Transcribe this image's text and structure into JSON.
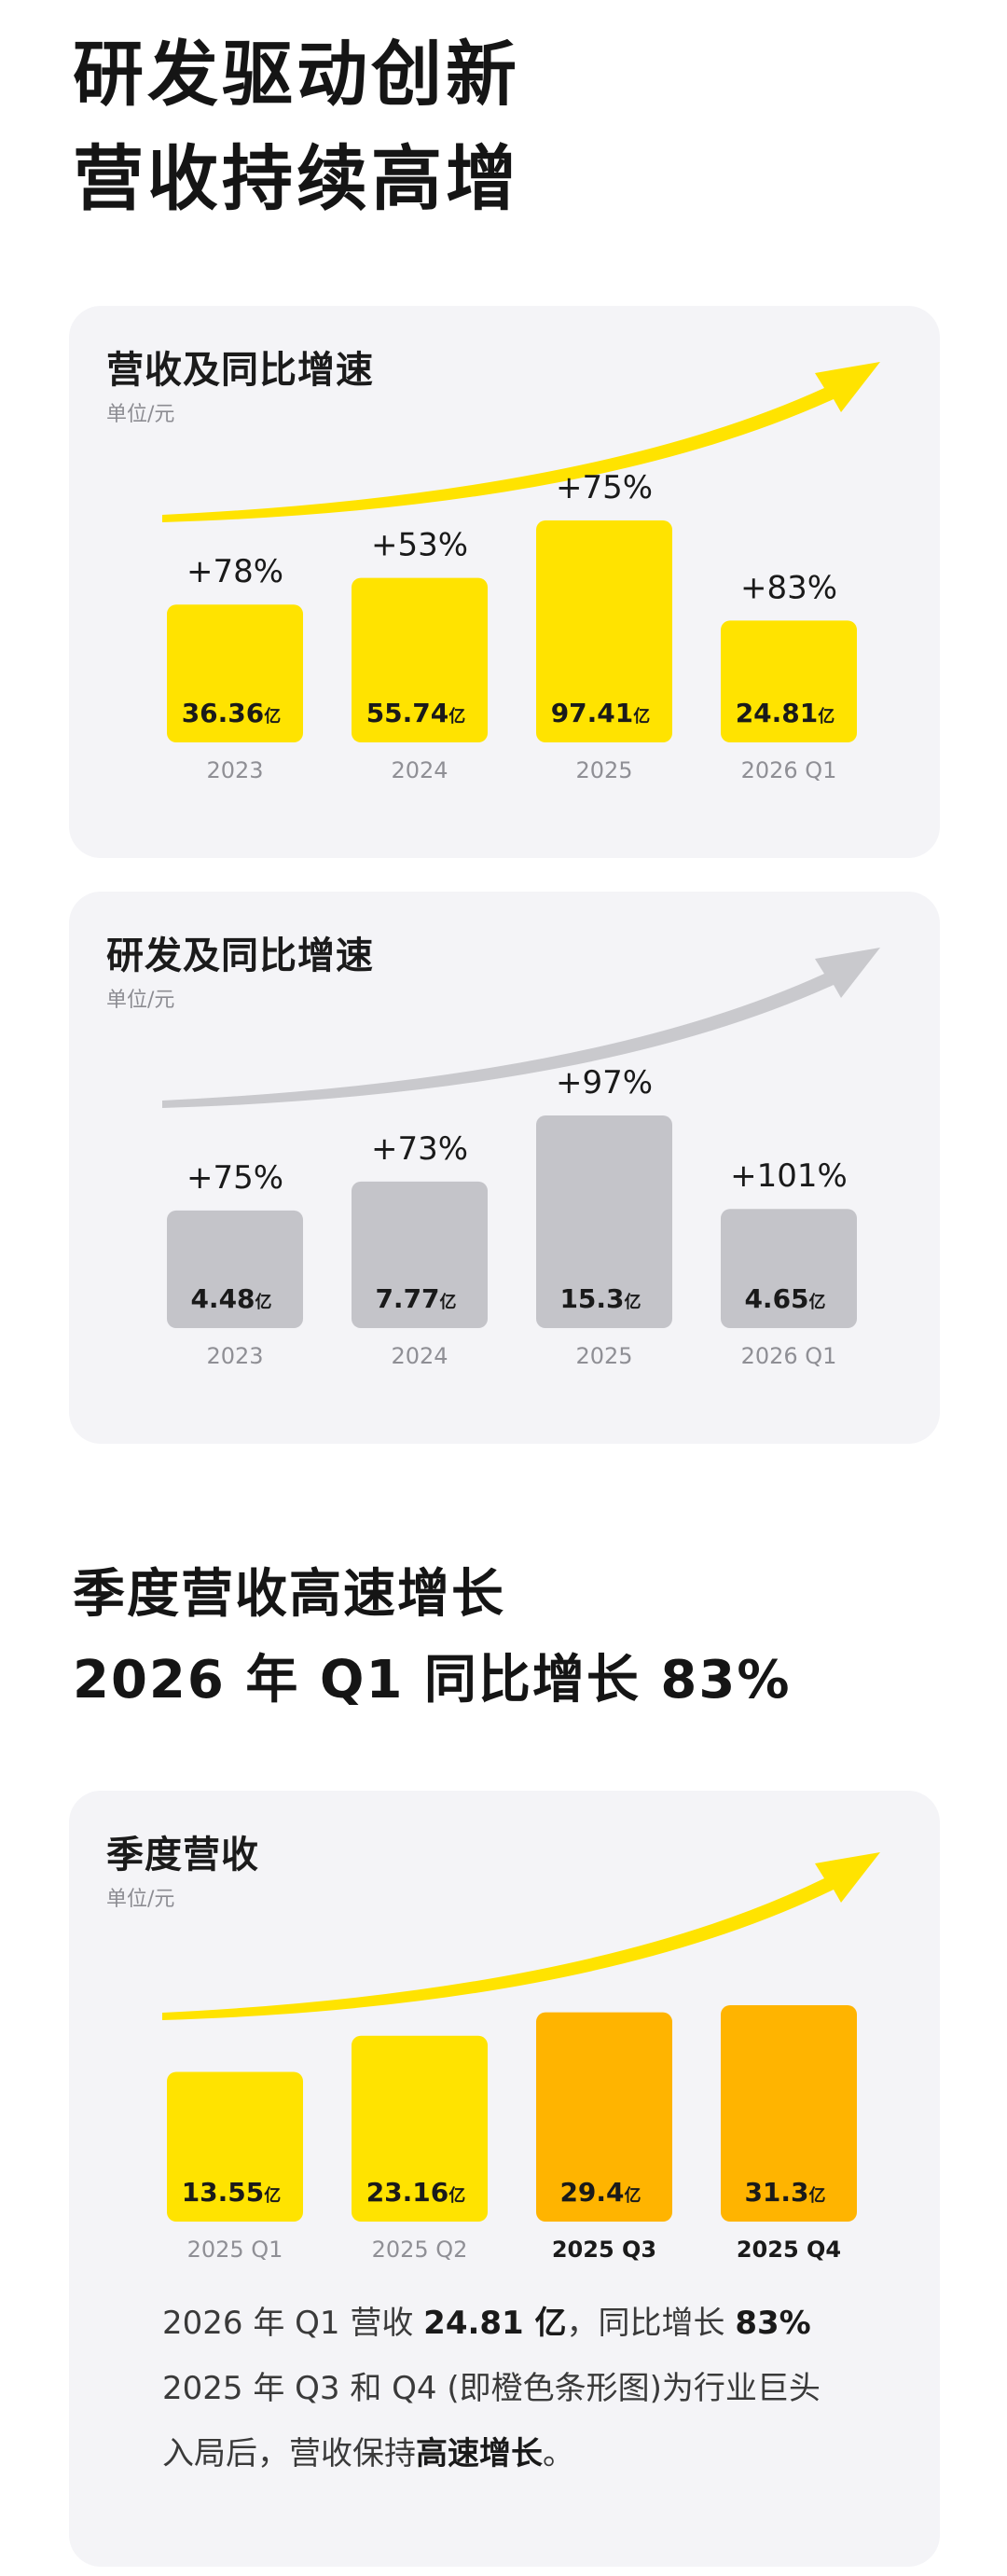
{
  "page": {
    "title_lines": [
      "研发驱动创新",
      "营收持续高增"
    ],
    "section2_lines": [
      "季度营收高速增长",
      "2026 年 Q1 同比增长 83%"
    ]
  },
  "colors": {
    "yellow": "#ffe300",
    "orange": "#ffb400",
    "gray_bar": "#c4c4c9",
    "gray_arrow": "#c9c9cd",
    "card_bg": "#f4f4f7"
  },
  "chart_data": [
    {
      "type": "bar",
      "title": "营收及同比增速",
      "unit": "单位/元",
      "categories": [
        "2023",
        "2024",
        "2025",
        "2026 Q1"
      ],
      "values": [
        36.36,
        55.74,
        97.41,
        24.81
      ],
      "value_labels": [
        "36.36亿",
        "55.74亿",
        "97.41亿",
        "24.81亿"
      ],
      "growth_labels": [
        "+78%",
        "+53%",
        "+75%",
        "+83%"
      ],
      "bar_color": "#ffe300",
      "arrow_color": "#ffe300",
      "bold_categories": [
        false,
        false,
        false,
        false
      ]
    },
    {
      "type": "bar",
      "title": "研发及同比增速",
      "unit": "单位/元",
      "categories": [
        "2023",
        "2024",
        "2025",
        "2026 Q1"
      ],
      "values": [
        4.48,
        7.77,
        15.3,
        4.65
      ],
      "value_labels": [
        "4.48亿",
        "7.77亿",
        "15.3亿",
        "4.65亿"
      ],
      "growth_labels": [
        "+75%",
        "+73%",
        "+97%",
        "+101%"
      ],
      "bar_color": "#c4c4c9",
      "arrow_color": "#c9c9cd",
      "bold_categories": [
        false,
        false,
        false,
        false
      ]
    },
    {
      "type": "bar",
      "title": "季度营收",
      "unit": "单位/元",
      "categories": [
        "2025 Q1",
        "2025 Q2",
        "2025 Q3",
        "2025 Q4"
      ],
      "values": [
        13.55,
        23.16,
        29.4,
        31.3
      ],
      "value_labels": [
        "13.55亿",
        "23.16亿",
        "29.4亿",
        "31.3亿"
      ],
      "growth_labels": [],
      "bar_colors": [
        "#ffe300",
        "#ffe300",
        "#ffb400",
        "#ffb400"
      ],
      "arrow_color": "#ffe300",
      "bold_categories": [
        false,
        false,
        true,
        true
      ]
    }
  ],
  "summary": {
    "line1_a": "2026 年 Q1 营收 ",
    "line1_b": "24.81 亿",
    "line1_c": "，同比增长 ",
    "line1_d": "83%",
    "line2": "2025 年 Q3 和 Q4 (即橙色条形图)为行业巨头",
    "line3_a": "入局后，营收保持",
    "line3_b": "高速增长",
    "line3_c": "。"
  }
}
